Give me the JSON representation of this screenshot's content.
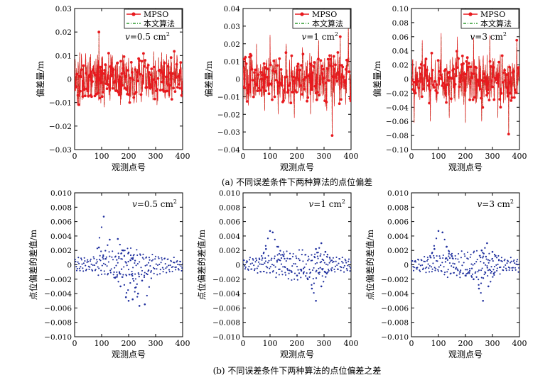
{
  "captions": {
    "a": "(a) 不同误差条件下两种算法的点位偏差",
    "b": "(b) 不同误差条件下两种算法的点位偏差之差"
  },
  "colors": {
    "mpso": "#e8191e",
    "proposed": "#2e9b2e",
    "scatter": "#1f2f9e"
  },
  "chart_data": [
    {
      "id": "a1",
      "type": "line",
      "xlabel": "观测点号",
      "ylabel": "偏差量/m",
      "xlim": [
        0,
        400
      ],
      "ylim": [
        -0.03,
        0.03
      ],
      "xticks": [
        0,
        100,
        200,
        300,
        400
      ],
      "yticks": [
        -0.03,
        -0.02,
        -0.01,
        0,
        0.01,
        0.02,
        0.03
      ],
      "ytick_labels": [
        "−0.03",
        "−0.02",
        "−0.01",
        "0",
        "0.01",
        "0.02",
        "0.03"
      ],
      "annotation": "v=0.5 cm²",
      "legend": [
        "MPSO",
        "本文算法"
      ],
      "legend_position": "top-right",
      "series_note": "about 400 observation points per series; values oscillate around 0",
      "x": [
        10,
        40,
        70,
        90,
        110,
        140,
        170,
        200,
        230,
        260,
        290,
        320,
        350,
        380
      ],
      "series": [
        {
          "name": "MPSO",
          "values": [
            -0.01,
            0.008,
            0.006,
            0.02,
            -0.012,
            0.01,
            -0.011,
            0.009,
            -0.01,
            0.008,
            -0.009,
            0.007,
            -0.008,
            0.009
          ]
        },
        {
          "name": "本文算法",
          "values": [
            -0.009,
            0.007,
            0.006,
            0.019,
            -0.011,
            0.009,
            -0.01,
            0.008,
            -0.009,
            0.007,
            -0.008,
            0.006,
            -0.007,
            0.008
          ]
        }
      ]
    },
    {
      "id": "a2",
      "type": "line",
      "xlabel": "观测点号",
      "ylabel": "偏差量/m",
      "xlim": [
        0,
        400
      ],
      "ylim": [
        -0.04,
        0.04
      ],
      "xticks": [
        0,
        100,
        200,
        300,
        400
      ],
      "yticks": [
        -0.04,
        -0.03,
        -0.02,
        -0.01,
        0,
        0.01,
        0.02,
        0.03,
        0.04
      ],
      "ytick_labels": [
        "−0.04",
        "−0.03",
        "−0.02",
        "−0.01",
        "0",
        "0.01",
        "0.02",
        "0.03",
        "0.04"
      ],
      "annotation": "v=1 cm²",
      "legend": [
        "MPSO",
        "本文算法"
      ],
      "legend_position": "top-right",
      "x": [
        20,
        50,
        80,
        100,
        130,
        160,
        190,
        220,
        250,
        280,
        310,
        330,
        360,
        390
      ],
      "series": [
        {
          "name": "MPSO",
          "values": [
            -0.015,
            0.02,
            -0.018,
            0.025,
            -0.02,
            0.02,
            -0.022,
            0.018,
            -0.02,
            0.022,
            -0.018,
            -0.032,
            0.024,
            0.03
          ]
        },
        {
          "name": "本文算法",
          "values": [
            -0.014,
            0.019,
            -0.017,
            0.024,
            -0.019,
            0.019,
            -0.021,
            0.017,
            -0.019,
            0.021,
            -0.017,
            -0.031,
            0.023,
            0.029
          ]
        }
      ]
    },
    {
      "id": "a3",
      "type": "line",
      "xlabel": "观测点号",
      "ylabel": "偏差量/m",
      "xlim": [
        0,
        400
      ],
      "ylim": [
        -0.1,
        0.1
      ],
      "xticks": [
        0,
        100,
        200,
        300,
        400
      ],
      "yticks": [
        -0.1,
        -0.08,
        -0.06,
        -0.04,
        -0.02,
        0,
        0.02,
        0.04,
        0.06,
        0.08,
        0.1
      ],
      "ytick_labels": [
        "−0.10",
        "−0.08",
        "−0.06",
        "−0.04",
        "−0.02",
        "0",
        "0.02",
        "0.04",
        "0.06",
        "0.08",
        "0.10"
      ],
      "annotation": "v=3 cm²",
      "legend": [
        "MPSO",
        "本文算法"
      ],
      "legend_position": "top-right",
      "x": [
        10,
        40,
        70,
        110,
        140,
        170,
        200,
        230,
        260,
        290,
        320,
        360,
        390
      ],
      "series": [
        {
          "name": "MPSO",
          "values": [
            -0.062,
            0.055,
            -0.06,
            0.065,
            -0.055,
            0.06,
            -0.062,
            0.058,
            -0.06,
            0.062,
            -0.055,
            -0.078,
            0.055
          ]
        },
        {
          "name": "本文算法",
          "values": [
            -0.06,
            0.053,
            -0.058,
            0.064,
            -0.053,
            0.058,
            -0.06,
            0.056,
            -0.058,
            0.06,
            -0.053,
            -0.076,
            0.053
          ]
        }
      ]
    },
    {
      "id": "b1",
      "type": "scatter",
      "xlabel": "观测点号",
      "ylabel": "点位偏差的差值/m",
      "xlim": [
        0,
        400
      ],
      "ylim": [
        -0.01,
        0.01
      ],
      "xticks": [
        0,
        100,
        200,
        300,
        400
      ],
      "yticks": [
        -0.01,
        -0.008,
        -0.006,
        -0.004,
        -0.002,
        0,
        0.002,
        0.004,
        0.006,
        0.008,
        0.01
      ],
      "ytick_labels": [
        "−0.010",
        "−0.008",
        "−0.006",
        "−0.004",
        "−0.002",
        "0",
        "0.002",
        "0.004",
        "0.006",
        "0.008",
        "0.010"
      ],
      "annotation": "v=0.5 cm²",
      "points": [
        [
          108,
          0.0067
        ],
        [
          90,
          0.0024
        ],
        [
          130,
          0.0035
        ],
        [
          160,
          0.0036
        ],
        [
          180,
          0.002
        ],
        [
          200,
          0.0017
        ],
        [
          215,
          0.0008
        ],
        [
          150,
          -0.0018
        ],
        [
          170,
          -0.003
        ],
        [
          190,
          -0.0045
        ],
        [
          200,
          -0.005
        ],
        [
          215,
          -0.0048
        ],
        [
          240,
          -0.0057
        ],
        [
          260,
          -0.0055
        ],
        [
          235,
          -0.004
        ],
        [
          250,
          -0.0022
        ]
      ]
    },
    {
      "id": "b2",
      "type": "scatter",
      "xlabel": "观测点号",
      "ylabel": "点位偏差的差值/m",
      "xlim": [
        0,
        400
      ],
      "ylim": [
        -0.01,
        0.01
      ],
      "xticks": [
        0,
        100,
        200,
        300,
        400
      ],
      "yticks": [
        -0.01,
        -0.008,
        -0.006,
        -0.004,
        -0.002,
        0,
        0.002,
        0.004,
        0.006,
        0.008,
        0.01
      ],
      "ytick_labels": [
        "−0.010",
        "−0.008",
        "−0.006",
        "−0.004",
        "−0.002",
        "0",
        "0.002",
        "0.004",
        "0.006",
        "0.008",
        "0.010"
      ],
      "annotation": "v=1 cm²",
      "points": [
        [
          100,
          0.0047
        ],
        [
          110,
          0.0045
        ],
        [
          85,
          0.0022
        ],
        [
          130,
          0.0025
        ],
        [
          150,
          0.0012
        ],
        [
          270,
          0.0022
        ],
        [
          290,
          0.003
        ],
        [
          305,
          0.0018
        ],
        [
          240,
          -0.002
        ],
        [
          255,
          -0.0033
        ],
        [
          270,
          -0.005
        ],
        [
          290,
          -0.003
        ],
        [
          310,
          -0.0012
        ],
        [
          200,
          -0.0015
        ],
        [
          180,
          -0.001
        ]
      ]
    },
    {
      "id": "b3",
      "type": "scatter",
      "xlabel": "观测点号",
      "ylabel": "点位偏差的差值/m",
      "xlim": [
        0,
        400
      ],
      "ylim": [
        -0.01,
        0.01
      ],
      "xticks": [
        0,
        100,
        200,
        300,
        400
      ],
      "yticks": [
        -0.01,
        -0.008,
        -0.006,
        -0.004,
        -0.002,
        0,
        0.002,
        0.004,
        0.006,
        0.008,
        0.01
      ],
      "ytick_labels": [
        "−0.010",
        "−0.008",
        "−0.006",
        "−0.004",
        "−0.002",
        "0",
        "0.002",
        "0.004",
        "0.006",
        "0.008",
        "0.010"
      ],
      "annotation": "v=3 cm²",
      "points": [
        [
          100,
          0.0047
        ],
        [
          115,
          0.0045
        ],
        [
          85,
          0.0022
        ],
        [
          130,
          0.0025
        ],
        [
          150,
          0.0012
        ],
        [
          260,
          0.002
        ],
        [
          280,
          0.003
        ],
        [
          300,
          0.0018
        ],
        [
          230,
          -0.002
        ],
        [
          250,
          -0.0033
        ],
        [
          265,
          -0.005
        ],
        [
          285,
          -0.003
        ],
        [
          305,
          -0.0012
        ],
        [
          200,
          -0.0015
        ],
        [
          180,
          -0.001
        ]
      ]
    }
  ]
}
